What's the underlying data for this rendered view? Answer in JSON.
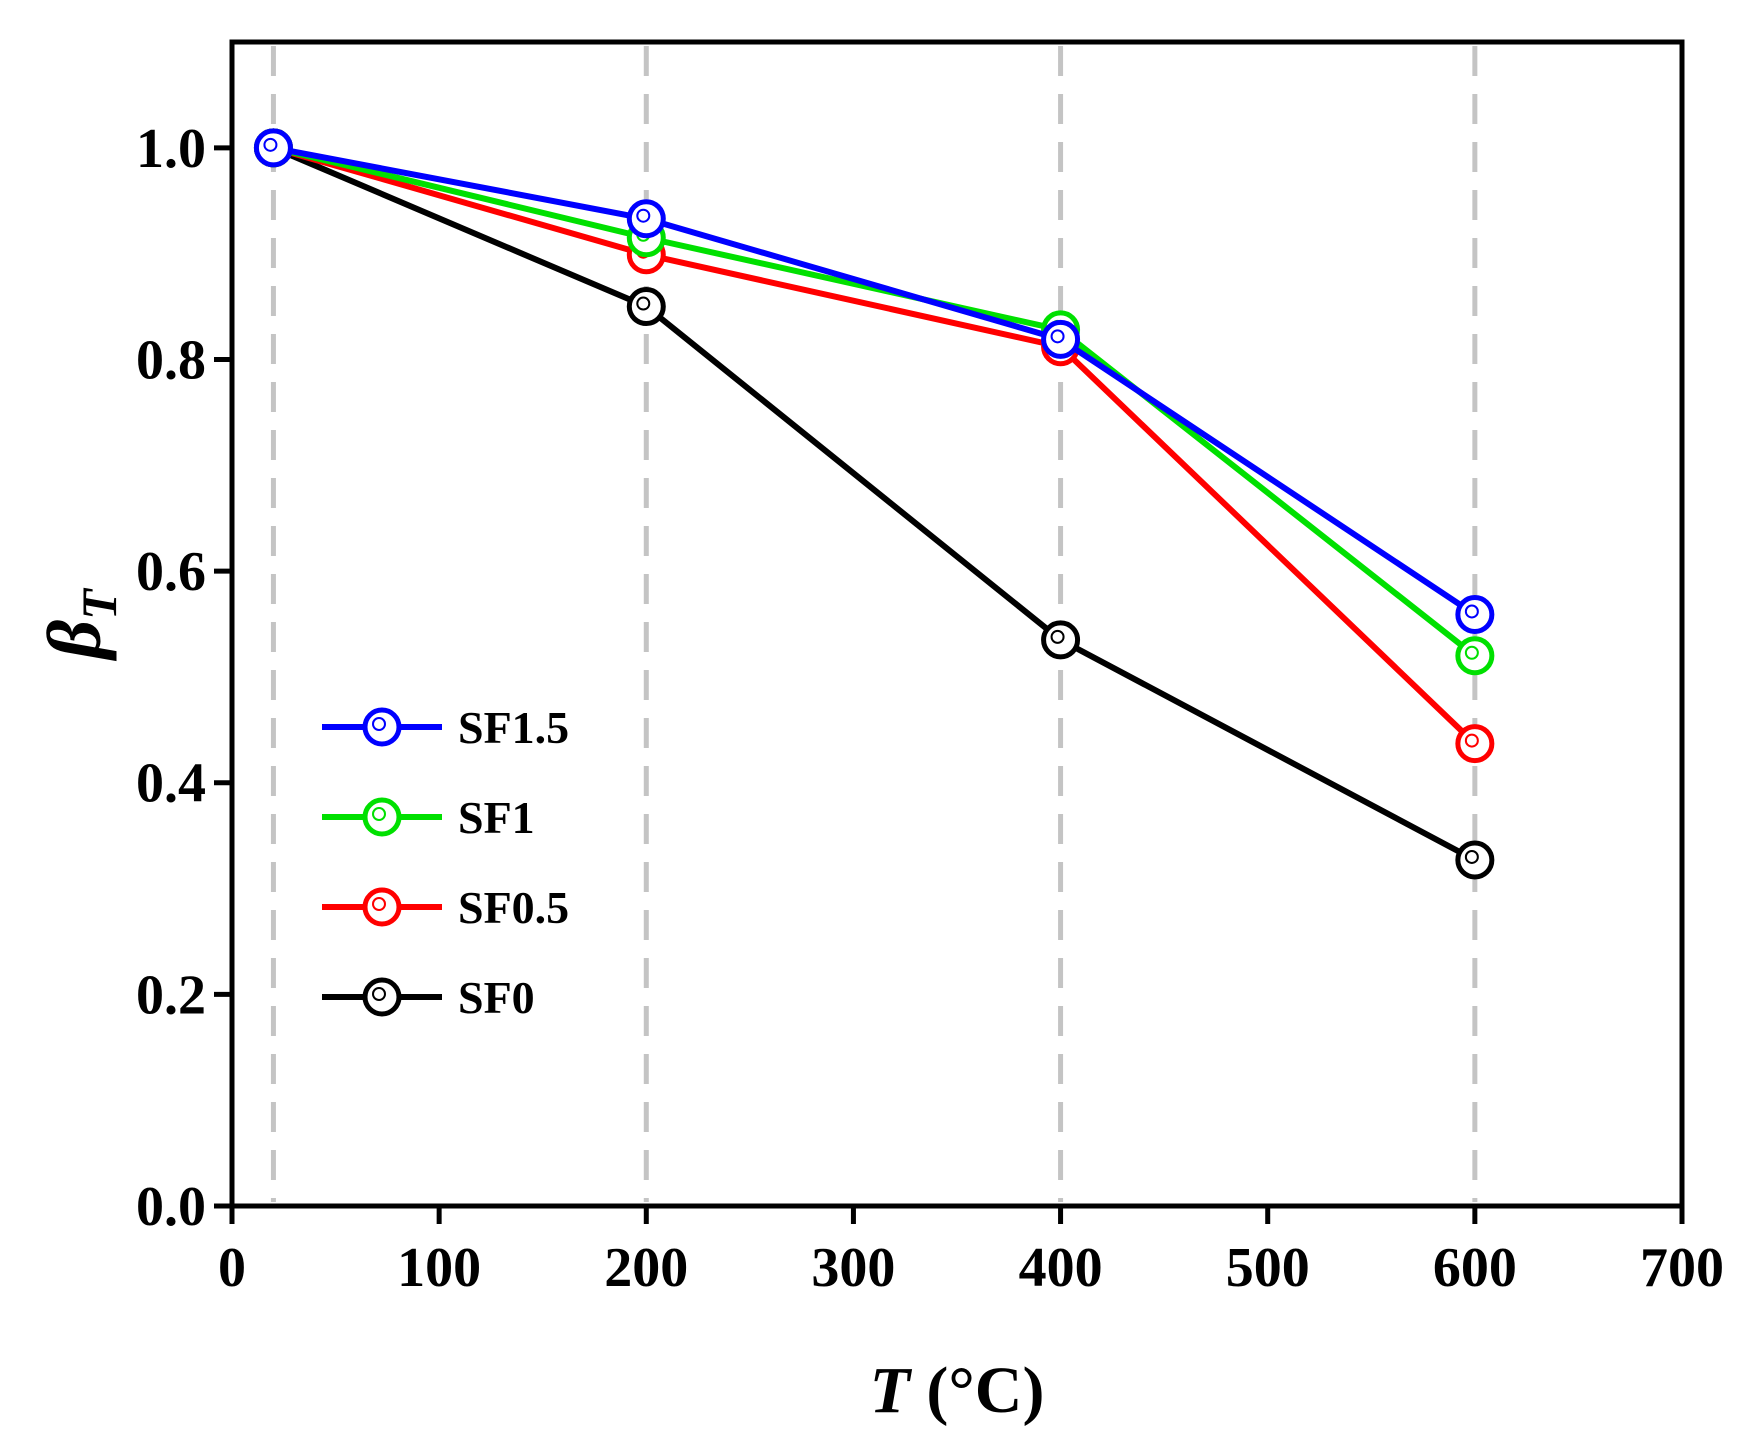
{
  "chart_data": {
    "type": "line",
    "xlabel_var": "T",
    "xlabel_unit": "(°C)",
    "ylabel_var": "β",
    "ylabel_sub": "T",
    "xlim": [
      0,
      700
    ],
    "ylim": [
      0,
      1.1
    ],
    "x_ticks": [
      0,
      100,
      200,
      300,
      400,
      500,
      600,
      700
    ],
    "x_tick_labels": [
      "0",
      "100",
      "200",
      "300",
      "400",
      "500",
      "600",
      "700"
    ],
    "y_ticks": [
      0.0,
      0.2,
      0.4,
      0.6,
      0.8,
      1.0
    ],
    "y_tick_labels": [
      "0.0",
      "0.2",
      "0.4",
      "0.6",
      "0.8",
      "1.0"
    ],
    "reference_lines_x": [
      20,
      200,
      400,
      600
    ],
    "legend_position": "center-left",
    "x": [
      20,
      200,
      400,
      600
    ],
    "series": [
      {
        "name": "SF1.5",
        "color": "#0000ff",
        "values": [
          1.0,
          0.933,
          0.819,
          0.559
        ]
      },
      {
        "name": "SF1",
        "color": "#00e000",
        "values": [
          1.0,
          0.915,
          0.828,
          0.52
        ]
      },
      {
        "name": "SF0.5",
        "color": "#ff0000",
        "values": [
          1.0,
          0.899,
          0.812,
          0.437
        ]
      },
      {
        "name": "SF0",
        "color": "#000000",
        "values": [
          1.0,
          0.85,
          0.535,
          0.327
        ]
      }
    ]
  }
}
